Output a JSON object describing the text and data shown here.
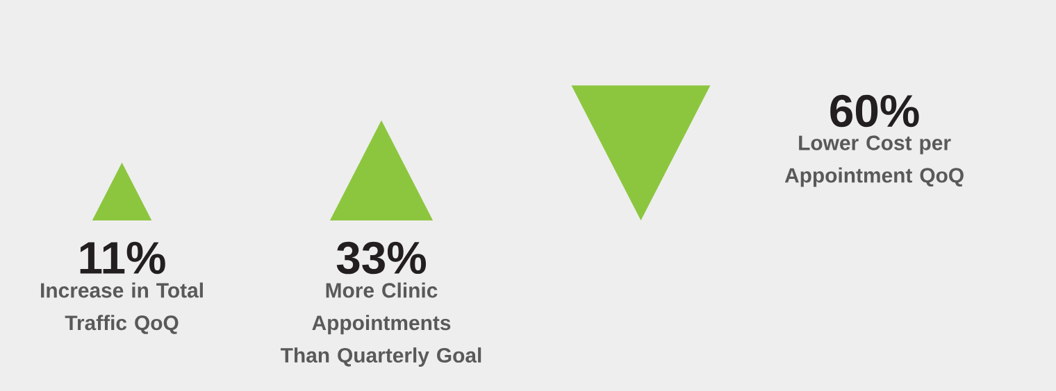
{
  "chart_data": {
    "type": "other",
    "categories": [
      "Increase in Total Traffic QoQ",
      "More Clinic Appointments Than Quarterly Goal",
      "Lower Cost per Appointment QoQ"
    ],
    "values": [
      11,
      33,
      60
    ],
    "value_labels": [
      "11%",
      "33%",
      "60%"
    ],
    "color": "#8cc63f"
  }
}
